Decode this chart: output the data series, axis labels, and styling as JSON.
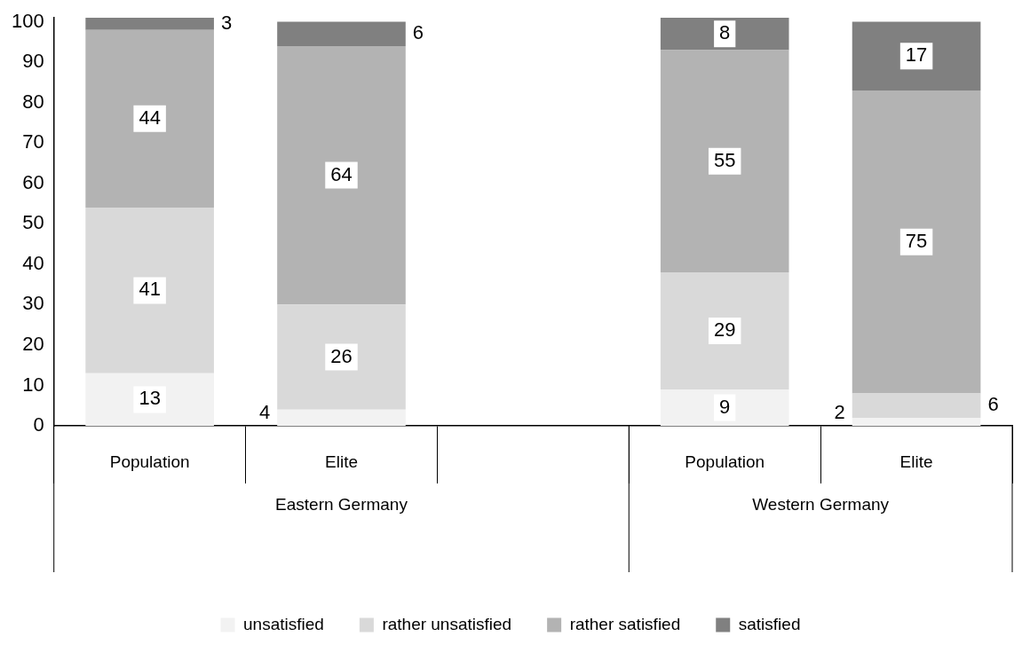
{
  "chart_data": {
    "type": "bar",
    "stacked": true,
    "categories": [
      "Population",
      "Elite",
      null,
      "Population",
      "Elite"
    ],
    "series": [
      {
        "name": "unsatisfied",
        "color": "#f2f2f2",
        "values": [
          13,
          4,
          null,
          9,
          2
        ]
      },
      {
        "name": "rather unsatisfied",
        "color": "#d9d9d9",
        "values": [
          41,
          26,
          null,
          29,
          6
        ]
      },
      {
        "name": "rather satisfied",
        "color": "#b3b3b3",
        "values": [
          44,
          64,
          null,
          55,
          75
        ]
      },
      {
        "name": "satisfied",
        "color": "#808080",
        "values": [
          3,
          6,
          null,
          8,
          17
        ]
      }
    ],
    "ylim": [
      0,
      101
    ],
    "yticks": [
      0,
      10,
      20,
      30,
      40,
      50,
      60,
      70,
      80,
      90,
      100
    ],
    "grid": false,
    "legend": "bottom",
    "data_labels": true,
    "annotations": [
      "Eastern Germany",
      "Western Germany"
    ]
  }
}
